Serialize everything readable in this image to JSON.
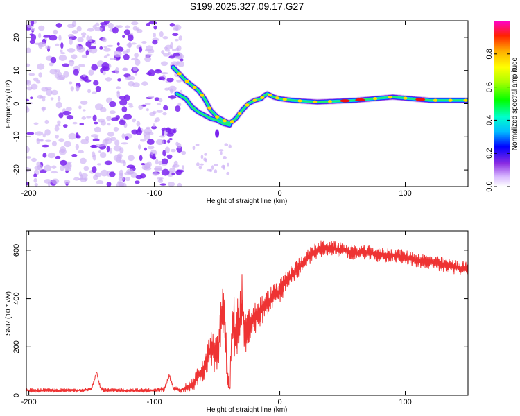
{
  "figure_title": "S199.2025.327.09.17.G27",
  "colors": {
    "frame": "#000000",
    "snr_line": "#ee3333",
    "noise": "#7a22ee",
    "noise_light": "#cdb0f5"
  },
  "chart_data": [
    {
      "type": "heatmap",
      "title": "S199.2025.327.09.17.G27",
      "xlabel": "Height of straight line (km)",
      "ylabel": "Frequency (Hz)",
      "xlim": [
        -202,
        150
      ],
      "ylim": [
        -25,
        25
      ],
      "xticks": [
        -200,
        -100,
        0,
        100
      ],
      "xtick_labels": [
        "-200",
        "-100",
        "0",
        "100"
      ],
      "yticks": [
        -20,
        -10,
        0,
        10,
        20
      ],
      "ytick_labels": [
        "-20",
        "-10",
        "0",
        "10",
        "20"
      ],
      "noise_region_x": [
        -202,
        -78
      ],
      "ridge": {
        "x": [
          -85,
          -80,
          -75,
          -70,
          -65,
          -60,
          -55,
          -50,
          -45,
          -40,
          -35,
          -30,
          -25,
          -20,
          -15,
          -12,
          -10,
          -5,
          0,
          10,
          30,
          60,
          90,
          120,
          150
        ],
        "y": [
          11,
          9,
          7,
          5.5,
          4,
          1.5,
          -2,
          -4,
          -5,
          -6,
          -4.5,
          -2,
          0,
          1,
          1.5,
          2.5,
          3,
          2,
          1.5,
          1,
          0.5,
          1,
          2,
          1,
          1
        ]
      },
      "lower_branch": {
        "x": [
          -82,
          -75,
          -70,
          -65,
          -60,
          -55,
          -50,
          -45,
          -40
        ],
        "y": [
          3,
          1.5,
          -1,
          -2.5,
          -3.5,
          -4.5,
          -5,
          -6,
          -6.5
        ]
      },
      "colorbar": {
        "label": "Normalized spectral amplitude",
        "range": [
          0,
          1
        ],
        "ticks": [
          0.0,
          0.2,
          0.4,
          0.6,
          0.8
        ],
        "tick_labels": [
          "0.0",
          "0.2",
          "0.4",
          "0.6",
          "0.8"
        ]
      }
    },
    {
      "type": "line",
      "xlabel": "Height of straight line (km)",
      "ylabel": "SNR (10 * v/v)",
      "xlim": [
        -202,
        150
      ],
      "ylim": [
        0,
        680
      ],
      "xticks": [
        -200,
        -100,
        0,
        100
      ],
      "xtick_labels": [
        "-200",
        "-100",
        "0",
        "100"
      ],
      "yticks": [
        0,
        200,
        400,
        600
      ],
      "ytick_labels": [
        "0",
        "200",
        "400",
        "600"
      ],
      "series": [
        {
          "name": "SNR",
          "x": [
            -202,
            -180,
            -160,
            -150,
            -146,
            -143,
            -140,
            -120,
            -100,
            -92,
            -88,
            -85,
            -80,
            -70,
            -65,
            -60,
            -55,
            -50,
            -45,
            -42,
            -40,
            -38,
            -35,
            -32,
            -30,
            -28,
            -25,
            -20,
            -15,
            -10,
            -5,
            0,
            5,
            10,
            15,
            20,
            25,
            30,
            35,
            40,
            50,
            60,
            70,
            80,
            90,
            100,
            110,
            120,
            130,
            140,
            150
          ],
          "y": [
            20,
            20,
            20,
            25,
            95,
            30,
            20,
            20,
            20,
            25,
            80,
            30,
            20,
            40,
            80,
            110,
            200,
            150,
            380,
            100,
            20,
            280,
            250,
            300,
            400,
            230,
            280,
            320,
            350,
            380,
            410,
            430,
            470,
            500,
            530,
            560,
            580,
            600,
            610,
            610,
            600,
            590,
            590,
            580,
            580,
            570,
            560,
            550,
            540,
            530,
            520
          ],
          "amplitude": [
            8,
            8,
            8,
            8,
            8,
            8,
            8,
            8,
            8,
            10,
            10,
            10,
            10,
            25,
            40,
            50,
            70,
            90,
            130,
            80,
            20,
            150,
            150,
            130,
            110,
            100,
            80,
            70,
            60,
            55,
            50,
            50,
            45,
            40,
            40,
            35,
            35,
            35,
            35,
            30,
            30,
            30,
            30,
            30,
            30,
            30,
            30,
            30,
            30,
            30,
            30
          ]
        }
      ]
    }
  ]
}
